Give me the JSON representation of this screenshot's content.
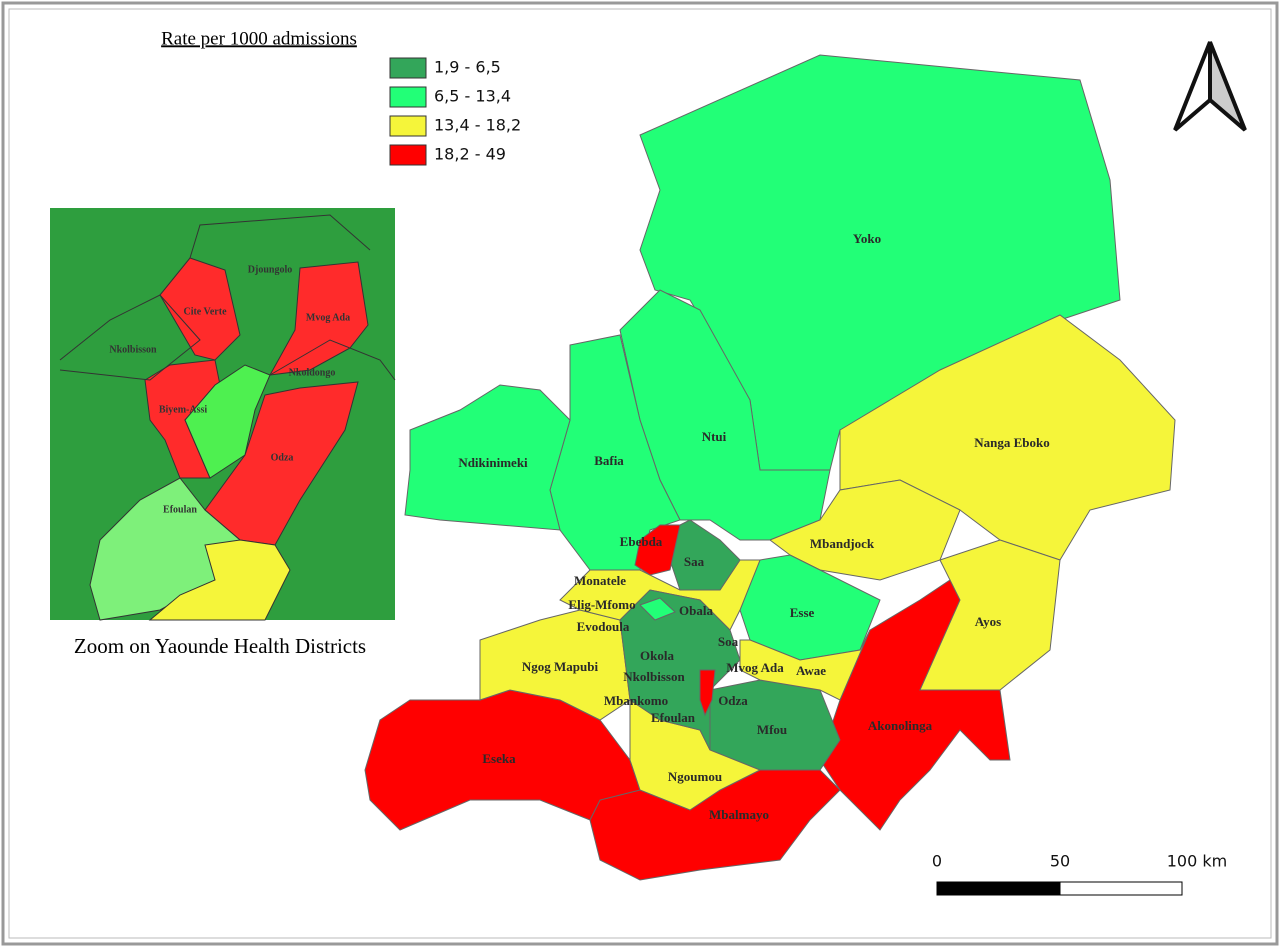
{
  "legend": {
    "title": "Rate per 1000 admissions",
    "items": [
      {
        "label": "1,9 - 6,5",
        "color": "#33a65a"
      },
      {
        "label": "6,5 - 13,4",
        "color": "#22ff77"
      },
      {
        "label": "13,4 - 18,2",
        "color": "#f5f53a"
      },
      {
        "label": "18,2 - 49",
        "color": "#ff0000"
      }
    ]
  },
  "map": {
    "districts": [
      "Yoko",
      "Ndikinimeki",
      "Bafia",
      "Ntui",
      "Nanga Eboko",
      "Mbandjock",
      "Ebebda",
      "Saa",
      "Monatele",
      "Elig-Mfomo",
      "Obala",
      "Esse",
      "Evodoula",
      "Ayos",
      "Soa",
      "Okola",
      "Ngog Mapubi",
      "Mvog Ada",
      "Awae",
      "Nkolbisson",
      "Mbankomo",
      "Odza",
      "Efoulan",
      "Akonolinga",
      "Mfou",
      "Eseka",
      "Ngoumou",
      "Mbalmayo"
    ]
  },
  "inset": {
    "caption": "Zoom on Yaounde Health Districts",
    "districts": [
      "Djoungolo",
      "Cite Verte",
      "Mvog Ada",
      "Nkolbisson",
      "Nkoldongo",
      "Biyem-Assi",
      "Odza",
      "Efoulan"
    ]
  },
  "scale_bar": {
    "labels": [
      "0",
      "50",
      "100 km"
    ]
  }
}
